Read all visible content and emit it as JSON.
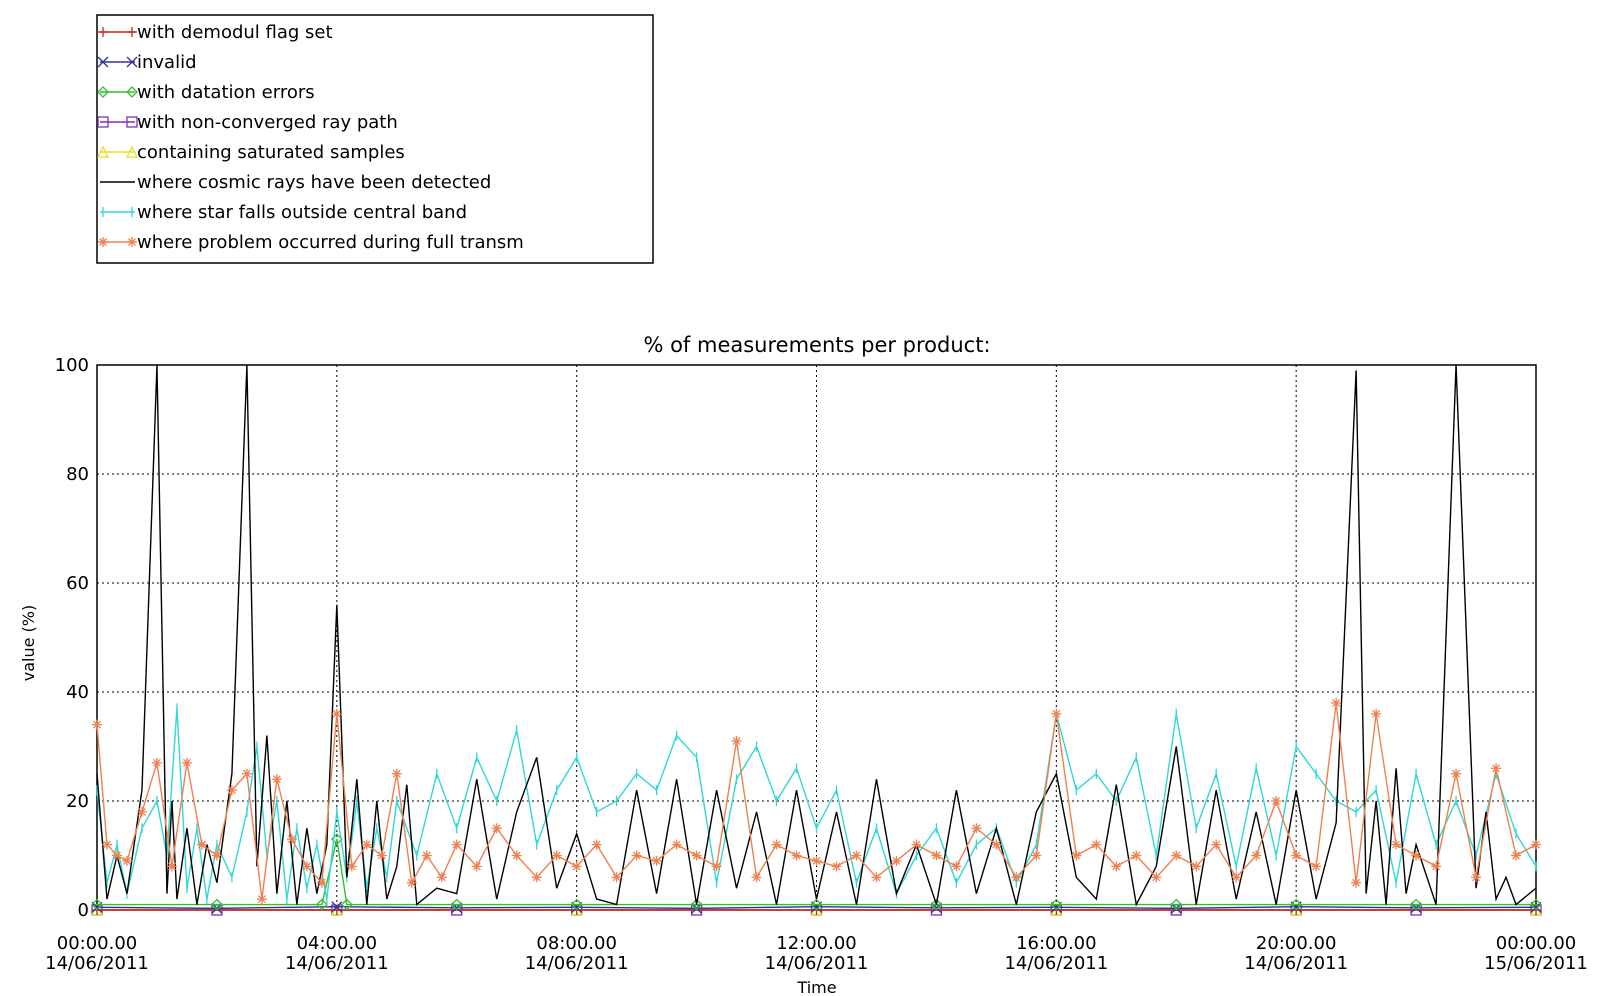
{
  "chart_data": {
    "type": "line",
    "title": "% of measurements per product:",
    "xlabel": "Time",
    "ylabel": "value (%)",
    "ylim": [
      0,
      100
    ],
    "xlim": [
      "2011-06-14 00:00",
      "2011-06-15 00:00"
    ],
    "grid": true,
    "legend_position": "top-left",
    "y_ticks": [
      "0",
      "20",
      "40",
      "60",
      "80",
      "100"
    ],
    "x_ticks": [
      {
        "time": "00:00.00",
        "date": "14/06/2011"
      },
      {
        "time": "04:00.00",
        "date": "14/06/2011"
      },
      {
        "time": "08:00.00",
        "date": "14/06/2011"
      },
      {
        "time": "12:00.00",
        "date": "14/06/2011"
      },
      {
        "time": "16:00.00",
        "date": "14/06/2011"
      },
      {
        "time": "20:00.00",
        "date": "14/06/2011"
      },
      {
        "time": "00:00.00",
        "date": "15/06/2011"
      }
    ],
    "series": [
      {
        "name": "with demodul flag set",
        "color": "#cc2020",
        "marker": "plus",
        "x": [
          "00:00",
          "04:00",
          "08:00",
          "12:00",
          "16:00",
          "20:00",
          "24:00"
        ],
        "values": [
          0,
          0,
          0,
          0,
          0,
          0,
          0
        ]
      },
      {
        "name": "invalid",
        "color": "#3030a0",
        "marker": "x",
        "x": [
          "00:00",
          "02:00",
          "04:00",
          "06:00",
          "08:00",
          "10:00",
          "12:00",
          "14:00",
          "16:00",
          "18:00",
          "20:00",
          "22:00",
          "24:00"
        ],
        "values": [
          0.5,
          0.3,
          0.6,
          0.4,
          0.5,
          0.3,
          0.6,
          0.4,
          0.5,
          0.3,
          0.6,
          0.4,
          0.5
        ]
      },
      {
        "name": "with datation errors",
        "color": "#30c030",
        "marker": "diamond",
        "x": [
          "00:00",
          "02:00",
          "03:45",
          "04:00",
          "04:10",
          "06:00",
          "08:00",
          "10:00",
          "12:00",
          "14:00",
          "16:00",
          "18:00",
          "20:00",
          "22:00",
          "24:00"
        ],
        "values": [
          1,
          1,
          1,
          13,
          1,
          1,
          1,
          1,
          1,
          1,
          1,
          1,
          1,
          1,
          1
        ]
      },
      {
        "name": "with non-converged ray path",
        "color": "#8030c0",
        "marker": "square",
        "x": [
          "00:00",
          "02:00",
          "04:00",
          "06:00",
          "08:00",
          "10:00",
          "12:00",
          "14:00",
          "16:00",
          "18:00",
          "20:00",
          "22:00",
          "24:00"
        ],
        "values": [
          0,
          0,
          0,
          0,
          0,
          0,
          0,
          0,
          0,
          0,
          0,
          0,
          0
        ]
      },
      {
        "name": "containing saturated samples",
        "color": "#e8e020",
        "marker": "triangle",
        "x": [
          "00:00",
          "04:00",
          "08:00",
          "12:00",
          "16:00",
          "20:00",
          "24:00"
        ],
        "values": [
          0,
          0,
          0,
          0,
          0,
          0,
          0
        ]
      },
      {
        "name": "where cosmic rays have been detected",
        "color": "#000000",
        "marker": "none",
        "x": [
          "00:00",
          "00:10",
          "00:20",
          "00:30",
          "00:45",
          "01:00",
          "01:10",
          "01:15",
          "01:20",
          "01:30",
          "01:40",
          "01:50",
          "02:00",
          "02:15",
          "02:30",
          "02:40",
          "02:50",
          "03:00",
          "03:10",
          "03:20",
          "03:30",
          "03:40",
          "03:50",
          "04:00",
          "04:10",
          "04:20",
          "04:30",
          "04:40",
          "04:50",
          "05:00",
          "05:10",
          "05:20",
          "05:40",
          "06:00",
          "06:20",
          "06:40",
          "07:00",
          "07:20",
          "07:40",
          "08:00",
          "08:20",
          "08:40",
          "09:00",
          "09:20",
          "09:40",
          "10:00",
          "10:20",
          "10:40",
          "11:00",
          "11:20",
          "11:40",
          "12:00",
          "12:20",
          "12:40",
          "13:00",
          "13:20",
          "13:40",
          "14:00",
          "14:20",
          "14:40",
          "15:00",
          "15:20",
          "15:40",
          "16:00",
          "16:20",
          "16:40",
          "17:00",
          "17:20",
          "17:40",
          "18:00",
          "18:20",
          "18:40",
          "19:00",
          "19:20",
          "19:40",
          "20:00",
          "20:20",
          "20:40",
          "21:00",
          "21:10",
          "21:20",
          "21:30",
          "21:40",
          "21:50",
          "22:00",
          "22:20",
          "22:40",
          "23:00",
          "23:10",
          "23:20",
          "23:30",
          "23:40",
          "24:00"
        ],
        "values": [
          25,
          2,
          10,
          3,
          22,
          100,
          3,
          20,
          2,
          15,
          1,
          12,
          5,
          25,
          100,
          8,
          32,
          3,
          20,
          1,
          15,
          3,
          12,
          56,
          6,
          24,
          1,
          20,
          2,
          8,
          23,
          1,
          4,
          3,
          24,
          2,
          18,
          28,
          4,
          14,
          2,
          1,
          22,
          3,
          24,
          1,
          22,
          4,
          18,
          1,
          22,
          2,
          18,
          1,
          24,
          3,
          12,
          1,
          22,
          3,
          15,
          1,
          18,
          25,
          6,
          2,
          23,
          1,
          8,
          30,
          1,
          22,
          2,
          18,
          1,
          22,
          2,
          16,
          99,
          3,
          20,
          1,
          26,
          3,
          12,
          1,
          100,
          4,
          18,
          2,
          6,
          1,
          4
        ]
      },
      {
        "name": "where star falls outside central band",
        "color": "#30d8d8",
        "marker": "bar",
        "x": [
          "00:00",
          "00:10",
          "00:20",
          "00:30",
          "00:45",
          "01:00",
          "01:10",
          "01:20",
          "01:30",
          "01:40",
          "01:50",
          "02:00",
          "02:15",
          "02:30",
          "02:40",
          "02:50",
          "03:00",
          "03:10",
          "03:20",
          "03:30",
          "03:40",
          "03:50",
          "04:00",
          "04:10",
          "04:20",
          "04:30",
          "04:40",
          "04:50",
          "05:00",
          "05:20",
          "05:40",
          "06:00",
          "06:20",
          "06:40",
          "07:00",
          "07:20",
          "07:40",
          "08:00",
          "08:20",
          "08:40",
          "09:00",
          "09:20",
          "09:40",
          "10:00",
          "10:20",
          "10:40",
          "11:00",
          "11:20",
          "11:40",
          "12:00",
          "12:20",
          "12:40",
          "13:00",
          "13:20",
          "13:40",
          "14:00",
          "14:20",
          "14:40",
          "15:00",
          "15:20",
          "15:40",
          "16:00",
          "16:20",
          "16:40",
          "17:00",
          "17:20",
          "17:40",
          "18:00",
          "18:20",
          "18:40",
          "19:00",
          "19:20",
          "19:40",
          "20:00",
          "20:20",
          "20:40",
          "21:00",
          "21:20",
          "21:40",
          "22:00",
          "22:20",
          "22:40",
          "23:00",
          "23:20",
          "23:40",
          "24:00"
        ],
        "values": [
          22,
          5,
          12,
          3,
          15,
          20,
          10,
          37,
          4,
          15,
          2,
          12,
          6,
          18,
          30,
          10,
          20,
          2,
          15,
          4,
          12,
          2,
          18,
          6,
          20,
          4,
          15,
          6,
          20,
          10,
          25,
          15,
          28,
          20,
          33,
          12,
          22,
          28,
          18,
          20,
          25,
          22,
          32,
          28,
          5,
          24,
          30,
          20,
          26,
          15,
          22,
          5,
          15,
          3,
          10,
          15,
          5,
          12,
          15,
          5,
          12,
          36,
          22,
          25,
          20,
          28,
          10,
          36,
          15,
          25,
          8,
          26,
          10,
          30,
          25,
          20,
          18,
          22,
          5,
          25,
          12,
          20,
          10,
          25,
          14,
          8
        ]
      },
      {
        "name": "where problem occurred during full transm",
        "color": "#f08050",
        "marker": "asterisk",
        "x": [
          "00:00",
          "00:10",
          "00:20",
          "00:30",
          "00:45",
          "01:00",
          "01:15",
          "01:30",
          "01:45",
          "02:00",
          "02:15",
          "02:30",
          "02:45",
          "03:00",
          "03:15",
          "03:30",
          "03:45",
          "04:00",
          "04:15",
          "04:30",
          "04:45",
          "05:00",
          "05:15",
          "05:30",
          "05:45",
          "06:00",
          "06:20",
          "06:40",
          "07:00",
          "07:20",
          "07:40",
          "08:00",
          "08:20",
          "08:40",
          "09:00",
          "09:20",
          "09:40",
          "10:00",
          "10:20",
          "10:40",
          "11:00",
          "11:20",
          "11:40",
          "12:00",
          "12:20",
          "12:40",
          "13:00",
          "13:20",
          "13:40",
          "14:00",
          "14:20",
          "14:40",
          "15:00",
          "15:20",
          "15:40",
          "16:00",
          "16:20",
          "16:40",
          "17:00",
          "17:20",
          "17:40",
          "18:00",
          "18:20",
          "18:40",
          "19:00",
          "19:20",
          "19:40",
          "20:00",
          "20:20",
          "20:40",
          "21:00",
          "21:20",
          "21:40",
          "22:00",
          "22:20",
          "22:40",
          "23:00",
          "23:20",
          "23:40",
          "24:00"
        ],
        "values": [
          34,
          12,
          10,
          9,
          18,
          27,
          8,
          27,
          12,
          10,
          22,
          25,
          2,
          24,
          13,
          8,
          5,
          36,
          8,
          12,
          10,
          25,
          5,
          10,
          6,
          12,
          8,
          15,
          10,
          6,
          10,
          8,
          12,
          6,
          10,
          9,
          12,
          10,
          8,
          31,
          6,
          12,
          10,
          9,
          8,
          10,
          6,
          9,
          12,
          10,
          8,
          15,
          12,
          6,
          10,
          36,
          10,
          12,
          8,
          10,
          6,
          10,
          8,
          12,
          6,
          10,
          20,
          10,
          8,
          38,
          5,
          36,
          12,
          10,
          8,
          25,
          6,
          26,
          10,
          12
        ]
      }
    ]
  }
}
